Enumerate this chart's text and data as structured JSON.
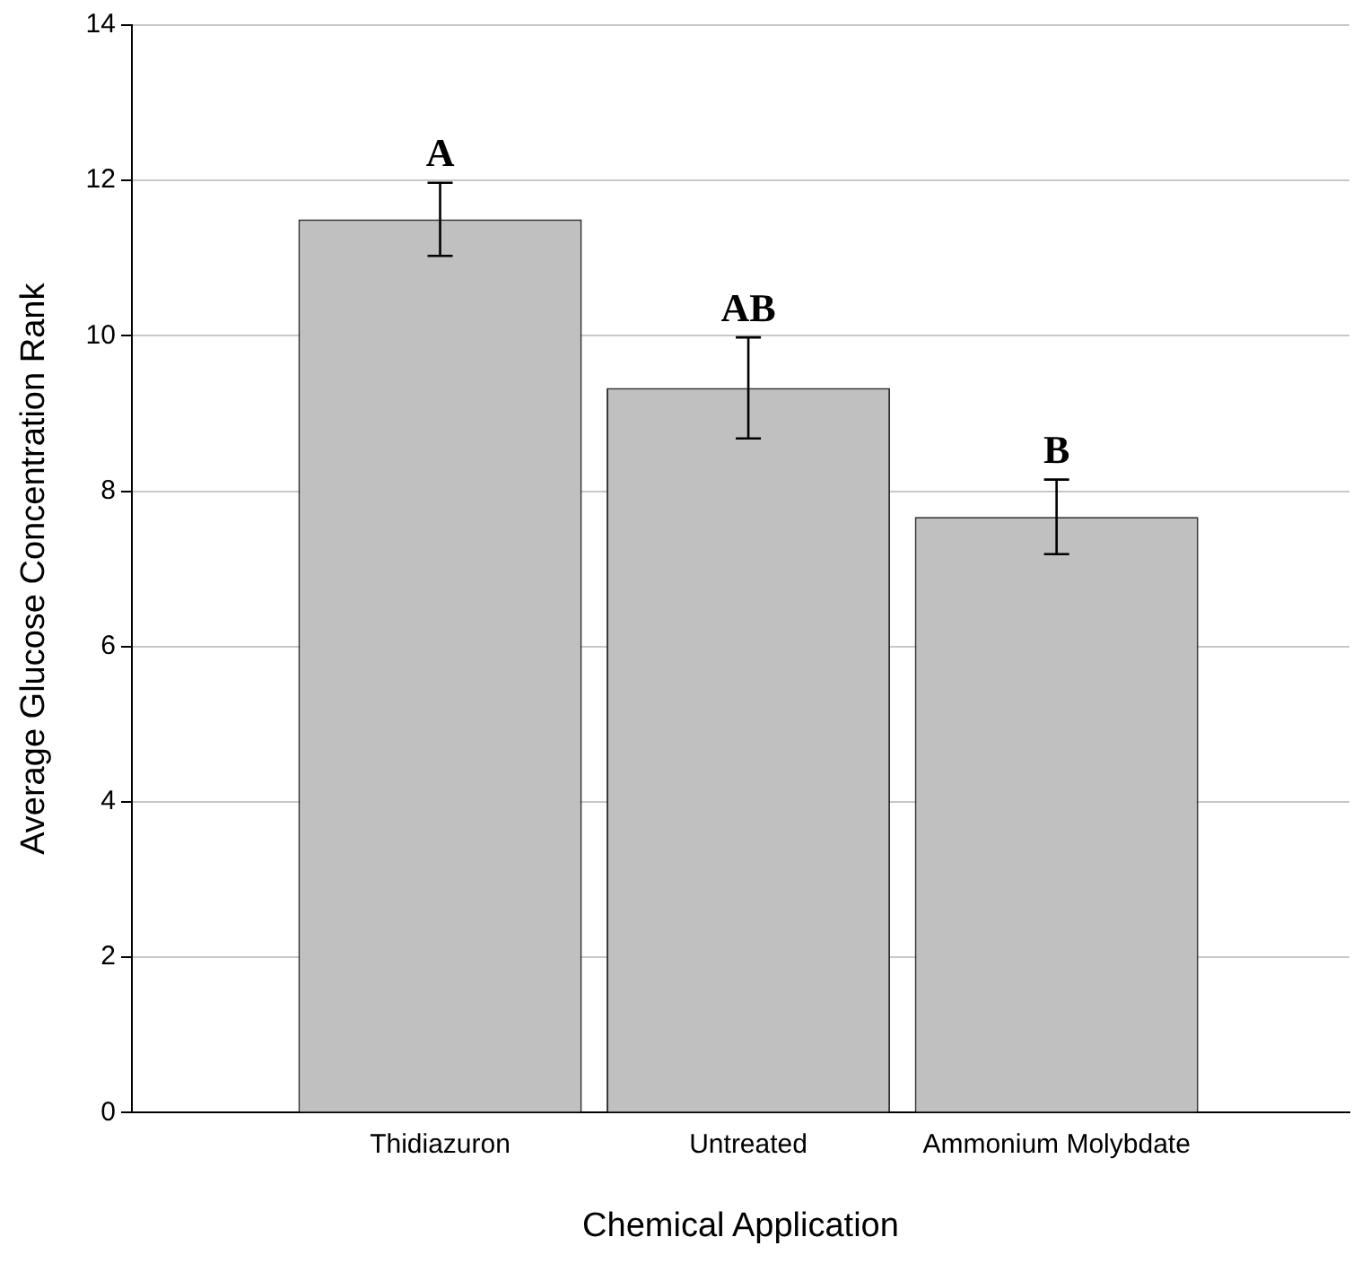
{
  "chart_data": {
    "type": "bar",
    "xlabel": "Chemical Application",
    "ylabel": "Average Glucose Concentration Rank",
    "categories": [
      "Thidiazuron",
      "Untreated",
      "Ammonium Molybdate"
    ],
    "values": [
      11.5,
      9.33,
      7.67
    ],
    "errors": [
      0.47,
      0.65,
      0.48
    ],
    "color": "#c0c0c0",
    "ylim": [
      0,
      14
    ],
    "yticks": [
      0,
      2,
      4,
      6,
      8,
      10,
      12,
      14
    ],
    "grid": "y",
    "annotations": [
      {
        "text": "A",
        "x": "Thidiazuron",
        "y": 11.97
      },
      {
        "text": "AB",
        "x": "Untreated",
        "y": 9.98
      },
      {
        "text": "B",
        "x": "Ammonium Molybdate",
        "y": 8.15
      }
    ]
  }
}
